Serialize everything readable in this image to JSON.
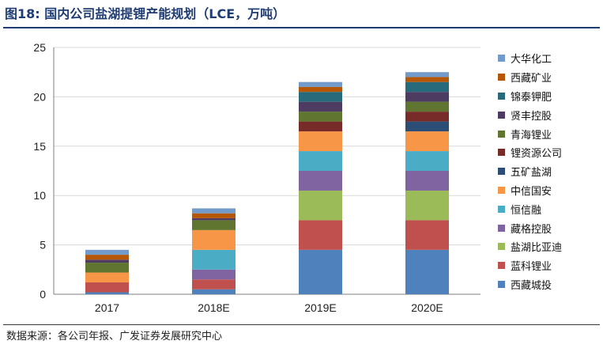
{
  "figure": {
    "label": "图18:",
    "title": "国内公司盐湖提锂产能规划（LCE，万吨）",
    "source": "数据来源：各公司年报、广发证券发展研究中心"
  },
  "chart_data": {
    "type": "bar",
    "stacked": true,
    "categories": [
      "2017",
      "2018E",
      "2019E",
      "2020E"
    ],
    "ylim": [
      0,
      25
    ],
    "yticks": [
      0,
      5,
      10,
      15,
      20,
      25
    ],
    "grid": true,
    "legend_position": "right",
    "series": [
      {
        "name": "西藏城投",
        "color": "#4f81bd",
        "values": [
          0.2,
          0.5,
          4.5,
          4.5
        ]
      },
      {
        "name": "蓝科锂业",
        "color": "#c0504d",
        "values": [
          1.0,
          1.0,
          3.0,
          3.0
        ]
      },
      {
        "name": "盐湖比亚迪",
        "color": "#9bbb59",
        "values": [
          0,
          0,
          3.0,
          3.0
        ]
      },
      {
        "name": "藏格控股",
        "color": "#8064a2",
        "values": [
          0,
          1.0,
          2.0,
          2.0
        ]
      },
      {
        "name": "恒信融",
        "color": "#4bacc6",
        "values": [
          0,
          2.0,
          2.0,
          2.0
        ]
      },
      {
        "name": "中信国安",
        "color": "#f79646",
        "values": [
          1.0,
          2.0,
          2.0,
          2.0
        ]
      },
      {
        "name": "五矿盐湖",
        "color": "#2c4d75",
        "values": [
          0,
          0,
          0,
          1.0
        ]
      },
      {
        "name": "锂资源公司",
        "color": "#772c2a",
        "values": [
          0,
          0,
          1.0,
          1.0
        ]
      },
      {
        "name": "青海锂业",
        "color": "#5f7530",
        "values": [
          1.0,
          1.0,
          1.0,
          1.0
        ]
      },
      {
        "name": "贤丰控股",
        "color": "#4d3b62",
        "values": [
          0.3,
          0.2,
          1.0,
          1.0
        ]
      },
      {
        "name": "锦泰钾肥",
        "color": "#276a7c",
        "values": [
          0,
          0,
          1.0,
          1.0
        ]
      },
      {
        "name": "西藏矿业",
        "color": "#b65708",
        "values": [
          0.5,
          0.5,
          0.5,
          0.5
        ]
      },
      {
        "name": "大华化工",
        "color": "#729aca",
        "values": [
          0.5,
          0.5,
          0.5,
          0.5
        ]
      }
    ]
  }
}
